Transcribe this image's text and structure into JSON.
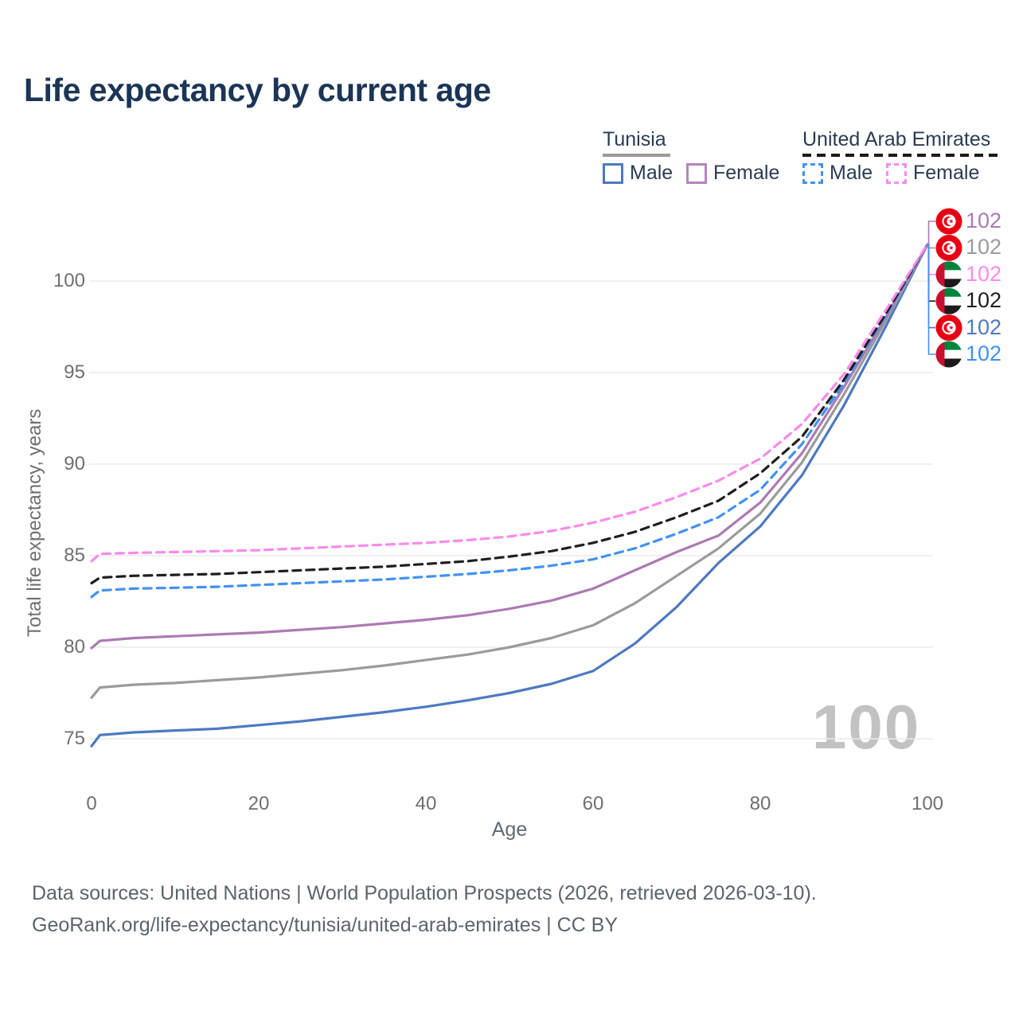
{
  "title": "Life expectancy by current age",
  "legend": {
    "groups": [
      {
        "name": "Tunisia",
        "underline_style": "solid",
        "underline_color": "#9a9a9a",
        "items": [
          {
            "label": "Male",
            "color": "#4e79c1",
            "dashed": false
          },
          {
            "label": "Female",
            "color": "#b685bd",
            "dashed": false
          }
        ]
      },
      {
        "name": "United Arab Emirates",
        "underline_style": "dashed",
        "underline_color": "#1a1a1a",
        "items": [
          {
            "label": "Male",
            "color": "#4292f0",
            "dashed": true
          },
          {
            "label": "Female",
            "color": "#fb8aec",
            "dashed": true
          }
        ]
      }
    ]
  },
  "chart_data": {
    "type": "line",
    "title": "Life expectancy by current age",
    "xlabel": "Age",
    "ylabel": "Total life expectancy, years",
    "xticks": [
      0,
      20,
      40,
      60,
      80,
      100
    ],
    "yticks": [
      75,
      80,
      85,
      90,
      95,
      100
    ],
    "xlim": [
      0,
      100
    ],
    "ylim": [
      73.5,
      103
    ],
    "grid": "horizontal-only",
    "legend_position": "top-right",
    "watermark": "100",
    "x": [
      0,
      1,
      5,
      10,
      15,
      20,
      25,
      30,
      35,
      40,
      45,
      50,
      55,
      60,
      65,
      70,
      75,
      80,
      85,
      90,
      95,
      100
    ],
    "series": [
      {
        "name": "Tunisia Male",
        "country": "tunisia",
        "sex": "male",
        "color": "#4e79c1",
        "dashed": false,
        "values": [
          74.6,
          75.2,
          75.35,
          75.45,
          75.55,
          75.75,
          75.95,
          76.2,
          76.45,
          76.75,
          77.1,
          77.5,
          78.0,
          78.7,
          80.2,
          82.2,
          84.6,
          86.6,
          89.4,
          93.2,
          97.5,
          102
        ]
      },
      {
        "name": "Tunisia (both sexes)",
        "country": "tunisia",
        "sex": "both",
        "color": "#9b9b9b",
        "dashed": false,
        "values": [
          77.25,
          77.8,
          77.95,
          78.05,
          78.2,
          78.35,
          78.55,
          78.75,
          79.0,
          79.3,
          79.6,
          80.0,
          80.5,
          81.2,
          82.4,
          83.9,
          85.4,
          87.3,
          90.1,
          93.8,
          97.8,
          102
        ]
      },
      {
        "name": "Tunisia Female",
        "country": "tunisia",
        "sex": "female",
        "color": "#ad7ab3",
        "dashed": false,
        "values": [
          79.95,
          80.35,
          80.5,
          80.6,
          80.7,
          80.8,
          80.95,
          81.1,
          81.3,
          81.5,
          81.75,
          82.1,
          82.55,
          83.2,
          84.2,
          85.2,
          86.1,
          87.9,
          90.6,
          94.2,
          98.0,
          102
        ]
      },
      {
        "name": "United Arab Emirates Male",
        "country": "uae",
        "sex": "male",
        "color": "#4292f0",
        "dashed": true,
        "values": [
          82.75,
          83.1,
          83.2,
          83.25,
          83.3,
          83.4,
          83.5,
          83.6,
          83.7,
          83.85,
          84.0,
          84.2,
          84.45,
          84.8,
          85.4,
          86.2,
          87.1,
          88.6,
          91.1,
          94.4,
          98.1,
          102
        ]
      },
      {
        "name": "United Arab Emirates (both sexes)",
        "country": "uae",
        "sex": "both",
        "color": "#1f1f1f",
        "dashed": true,
        "values": [
          83.5,
          83.8,
          83.9,
          83.95,
          84.0,
          84.1,
          84.2,
          84.3,
          84.4,
          84.55,
          84.7,
          84.95,
          85.25,
          85.7,
          86.3,
          87.1,
          88.0,
          89.5,
          91.5,
          94.6,
          98.2,
          102
        ]
      },
      {
        "name": "United Arab Emirates Female",
        "country": "uae",
        "sex": "female",
        "color": "#fb8aec",
        "dashed": true,
        "values": [
          84.7,
          85.1,
          85.15,
          85.2,
          85.25,
          85.3,
          85.4,
          85.5,
          85.6,
          85.7,
          85.85,
          86.05,
          86.35,
          86.8,
          87.4,
          88.2,
          89.1,
          90.3,
          92.2,
          94.9,
          98.4,
          102
        ]
      }
    ],
    "end_labels": [
      {
        "flag": "tunisia",
        "series": "Tunisia Female",
        "value": "102",
        "color": "#ad7ab3"
      },
      {
        "flag": "tunisia",
        "series": "Tunisia (both sexes)",
        "value": "102",
        "color": "#9b9b9b"
      },
      {
        "flag": "uae",
        "series": "United Arab Emirates Female",
        "value": "102",
        "color": "#fb8aec"
      },
      {
        "flag": "uae",
        "series": "United Arab Emirates (both sexes)",
        "value": "102",
        "color": "#1f1f1f"
      },
      {
        "flag": "tunisia",
        "series": "Tunisia Male",
        "value": "102",
        "color": "#4e79c1"
      },
      {
        "flag": "uae",
        "series": "United Arab Emirates Male",
        "value": "102",
        "color": "#4292f0"
      }
    ]
  },
  "footer": {
    "line1": "Data sources: United Nations | World Population Prospects (2026, retrieved 2026-03-10).",
    "line2": "GeoRank.org/life-expectancy/tunisia/united-arab-emirates | CC BY"
  },
  "colors": {
    "title": "#1b3557",
    "grid": "#ebebeb",
    "tick_label": "#6f6f6f",
    "watermark": "#c2c2c2",
    "footer": "#5b646e",
    "tunisia_flag_red": "#e70013",
    "uae_green": "#00843d",
    "uae_black": "#1a1a1a",
    "uae_red": "#c8102e"
  }
}
